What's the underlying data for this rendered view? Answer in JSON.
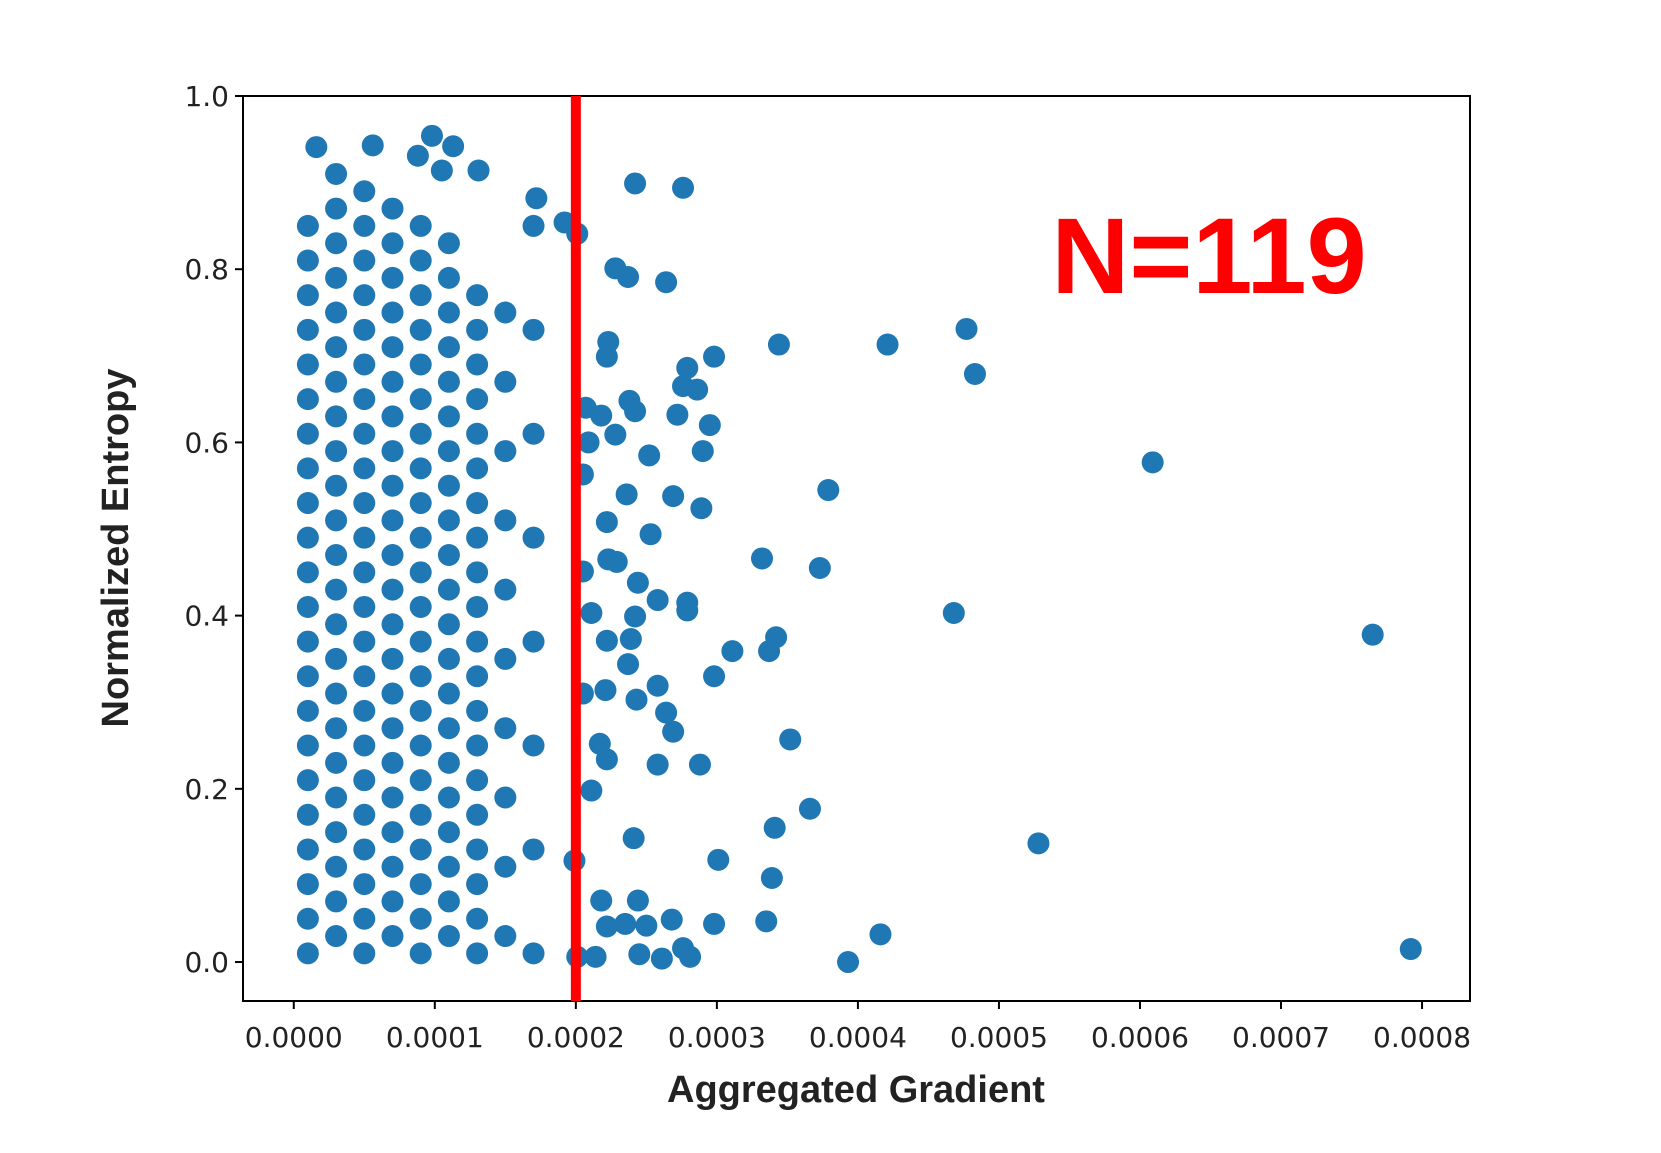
{
  "chart_data": {
    "type": "scatter",
    "x_label": "Aggregated Gradient",
    "y_label": "Normalized Entropy",
    "color": "#1f77b4",
    "xlim": [
      -3.6e-05,
      0.000834
    ],
    "ylim": [
      -0.045,
      1.0
    ],
    "xticks": [
      {
        "value": 0,
        "label": "0.0000"
      },
      {
        "value": 0.0001,
        "label": "0.0001"
      },
      {
        "value": 0.0002,
        "label": "0.0002"
      },
      {
        "value": 0.0003,
        "label": "0.0003"
      },
      {
        "value": 0.0004,
        "label": "0.0004"
      },
      {
        "value": 0.0005,
        "label": "0.0005"
      },
      {
        "value": 0.0006,
        "label": "0.0006"
      },
      {
        "value": 0.0007,
        "label": "0.0007"
      },
      {
        "value": 0.0008,
        "label": "0.0008"
      }
    ],
    "yticks": [
      {
        "value": 0,
        "label": "0.0"
      },
      0.2,
      0.4,
      0.6,
      0.8,
      {
        "value": 1,
        "label": "1.0"
      }
    ],
    "grid": false,
    "vline": {
      "x": 0.0002,
      "color": "#ff0000"
    },
    "annotation": {
      "text": "N=119",
      "color": "#ff0000"
    },
    "x": [
      1e-05,
      1e-05,
      1e-05,
      1e-05,
      1e-05,
      1e-05,
      1e-05,
      1e-05,
      1e-05,
      1e-05,
      1e-05,
      1e-05,
      1e-05,
      1e-05,
      1e-05,
      1e-05,
      1e-05,
      1e-05,
      1e-05,
      1e-05,
      1e-05,
      1e-05,
      3e-05,
      3e-05,
      3e-05,
      3e-05,
      3e-05,
      3e-05,
      3e-05,
      3e-05,
      3e-05,
      3e-05,
      3e-05,
      3e-05,
      3e-05,
      3e-05,
      3e-05,
      3e-05,
      3e-05,
      3e-05,
      3e-05,
      3e-05,
      3e-05,
      3e-05,
      3e-05,
      5e-05,
      5e-05,
      5e-05,
      5e-05,
      5e-05,
      5e-05,
      5e-05,
      5e-05,
      5e-05,
      5e-05,
      5e-05,
      5e-05,
      5e-05,
      5e-05,
      5e-05,
      5e-05,
      5e-05,
      5e-05,
      5e-05,
      5e-05,
      5e-05,
      5e-05,
      5e-05,
      7e-05,
      7e-05,
      7e-05,
      7e-05,
      7e-05,
      7e-05,
      7e-05,
      7e-05,
      7e-05,
      7e-05,
      7e-05,
      7e-05,
      7e-05,
      7e-05,
      7e-05,
      7e-05,
      7e-05,
      7e-05,
      7e-05,
      7e-05,
      7e-05,
      7e-05,
      9e-05,
      9e-05,
      9e-05,
      9e-05,
      9e-05,
      9e-05,
      9e-05,
      9e-05,
      9e-05,
      9e-05,
      9e-05,
      9e-05,
      9e-05,
      9e-05,
      9e-05,
      9e-05,
      9e-05,
      9e-05,
      9e-05,
      9e-05,
      9e-05,
      9e-05,
      0.00011,
      0.00011,
      0.00011,
      0.00011,
      0.00011,
      0.00011,
      0.00011,
      0.00011,
      0.00011,
      0.00011,
      0.00011,
      0.00011,
      0.00011,
      0.00011,
      0.00011,
      0.00011,
      0.00011,
      0.00011,
      0.00011,
      0.00011,
      0.00011,
      0.00013,
      0.00013,
      0.00013,
      0.00013,
      0.00013,
      0.00013,
      0.00013,
      0.00013,
      0.00013,
      0.00013,
      0.00013,
      0.00013,
      0.00013,
      0.00013,
      0.00013,
      0.00013,
      0.00013,
      0.00013,
      0.00013,
      0.00013,
      0.00015,
      0.00015,
      0.00015,
      0.00015,
      0.00015,
      0.00015,
      0.00015,
      0.00015,
      0.00015,
      0.00015,
      0.00017,
      0.00017,
      0.00017,
      0.00017,
      0.00017,
      0.00017,
      0.00017,
      0.00017,
      1.6e-05,
      5.6e-05,
      9.8e-05,
      0.000113,
      0.000131,
      8.8e-05,
      0.000105,
      0.000242,
      0.000276,
      0.000192,
      0.000201,
      0.000172,
      0.000228,
      0.000237,
      0.000264,
      0.000344,
      0.000421,
      0.000477,
      0.000483,
      0.000298,
      0.000279,
      0.000223,
      0.000222,
      0.000238,
      0.000242,
      0.000272,
      0.000276,
      0.000286,
      0.000295,
      0.00029,
      0.000252,
      0.000228,
      0.000218,
      0.000209,
      0.000609,
      0.000379,
      0.000269,
      0.000236,
      0.000222,
      0.000253,
      0.000289,
      0.000332,
      0.000373,
      0.000223,
      0.000229,
      0.000244,
      0.000258,
      0.000279,
      0.000279,
      0.000468,
      0.000765,
      0.000311,
      0.000342,
      0.000337,
      0.000242,
      0.000222,
      0.000239,
      0.000237,
      0.000211,
      0.000221,
      0.000243,
      0.000258,
      0.000264,
      0.000269,
      0.000298,
      0.000352,
      0.000217,
      0.000222,
      0.000258,
      0.000288,
      0.000211,
      0.000366,
      0.000341,
      0.000241,
      0.000528,
      0.000301,
      0.000339,
      0.000218,
      0.000244,
      0.000335,
      0.000298,
      0.000268,
      0.00025,
      0.000235,
      0.000222,
      0.000416,
      0.000792,
      0.000393,
      0.000245,
      0.000214,
      0.000261,
      0.000281,
      0.000276,
      0.000201,
      0.000207,
      0.000205,
      0.000205,
      0.000205,
      0.000199
    ],
    "values": [
      0.01,
      0.05,
      0.09,
      0.13,
      0.17,
      0.21,
      0.25,
      0.29,
      0.33,
      0.37,
      0.41,
      0.45,
      0.49,
      0.53,
      0.57,
      0.61,
      0.65,
      0.69,
      0.73,
      0.77,
      0.81,
      0.85,
      0.03,
      0.07,
      0.11,
      0.15,
      0.19,
      0.23,
      0.27,
      0.31,
      0.35,
      0.39,
      0.43,
      0.47,
      0.51,
      0.55,
      0.59,
      0.63,
      0.67,
      0.71,
      0.75,
      0.79,
      0.83,
      0.87,
      0.91,
      0.01,
      0.05,
      0.09,
      0.13,
      0.17,
      0.21,
      0.25,
      0.29,
      0.33,
      0.37,
      0.41,
      0.45,
      0.49,
      0.53,
      0.57,
      0.61,
      0.65,
      0.69,
      0.73,
      0.77,
      0.81,
      0.85,
      0.89,
      0.03,
      0.07,
      0.11,
      0.15,
      0.19,
      0.23,
      0.27,
      0.31,
      0.35,
      0.39,
      0.43,
      0.47,
      0.51,
      0.55,
      0.59,
      0.63,
      0.67,
      0.71,
      0.75,
      0.79,
      0.83,
      0.87,
      0.01,
      0.05,
      0.09,
      0.13,
      0.17,
      0.21,
      0.25,
      0.29,
      0.33,
      0.37,
      0.41,
      0.45,
      0.49,
      0.53,
      0.57,
      0.61,
      0.65,
      0.69,
      0.73,
      0.77,
      0.81,
      0.85,
      0.03,
      0.07,
      0.11,
      0.15,
      0.19,
      0.23,
      0.27,
      0.31,
      0.35,
      0.39,
      0.43,
      0.47,
      0.51,
      0.55,
      0.59,
      0.63,
      0.67,
      0.71,
      0.75,
      0.79,
      0.83,
      0.01,
      0.05,
      0.09,
      0.13,
      0.17,
      0.21,
      0.25,
      0.29,
      0.33,
      0.37,
      0.41,
      0.45,
      0.49,
      0.53,
      0.57,
      0.61,
      0.65,
      0.69,
      0.73,
      0.77,
      0.03,
      0.11,
      0.19,
      0.27,
      0.35,
      0.43,
      0.51,
      0.59,
      0.67,
      0.75,
      0.01,
      0.13,
      0.25,
      0.37,
      0.49,
      0.61,
      0.73,
      0.85,
      0.941,
      0.943,
      0.954,
      0.942,
      0.914,
      0.931,
      0.914,
      0.899,
      0.894,
      0.854,
      0.841,
      0.882,
      0.801,
      0.791,
      0.785,
      0.713,
      0.713,
      0.731,
      0.679,
      0.699,
      0.686,
      0.716,
      0.699,
      0.648,
      0.636,
      0.632,
      0.665,
      0.661,
      0.62,
      0.59,
      0.585,
      0.609,
      0.631,
      0.6,
      0.577,
      0.545,
      0.538,
      0.54,
      0.508,
      0.494,
      0.524,
      0.466,
      0.455,
      0.465,
      0.462,
      0.438,
      0.418,
      0.415,
      0.406,
      0.403,
      0.378,
      0.359,
      0.375,
      0.359,
      0.399,
      0.371,
      0.373,
      0.344,
      0.403,
      0.314,
      0.303,
      0.319,
      0.288,
      0.266,
      0.33,
      0.257,
      0.252,
      0.234,
      0.228,
      0.228,
      0.198,
      0.177,
      0.155,
      0.143,
      0.137,
      0.118,
      0.097,
      0.071,
      0.071,
      0.047,
      0.044,
      0.049,
      0.042,
      0.044,
      0.041,
      0.032,
      0.015,
      0,
      0.009,
      0.006,
      0.004,
      0.006,
      0.016,
      0.006,
      0.64,
      0.563,
      0.451,
      0.31,
      0.117
    ]
  }
}
